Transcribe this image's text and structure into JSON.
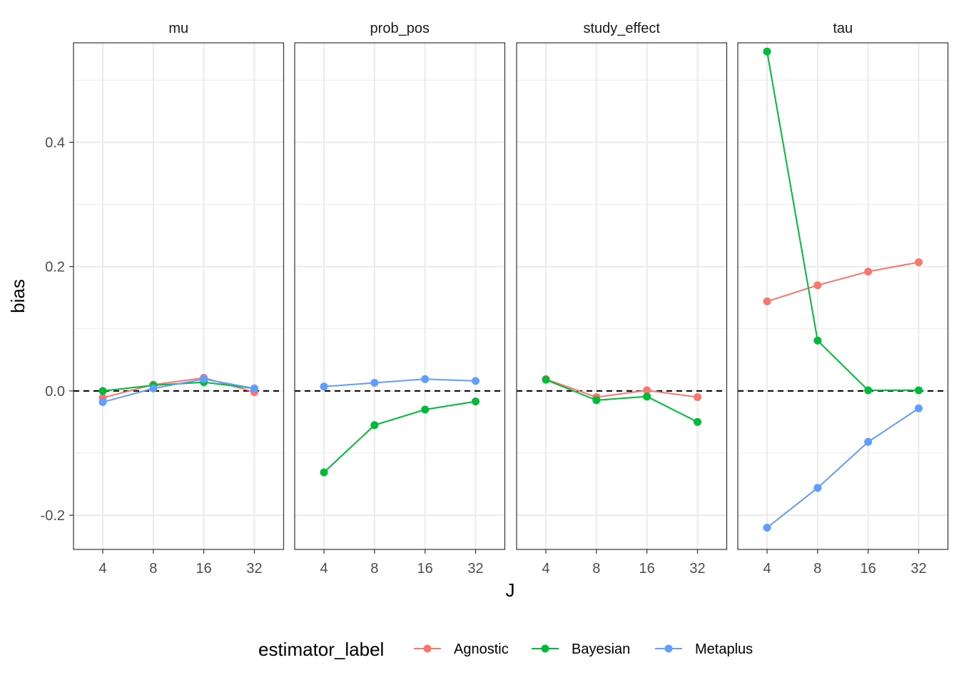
{
  "chart_data": {
    "type": "line",
    "facet_var": "quantity",
    "facets": [
      "mu",
      "prob_pos",
      "study_effect",
      "tau"
    ],
    "x": [
      4,
      8,
      16,
      32
    ],
    "x_scale": "log2",
    "xlabel": "J",
    "ylabel": "bias",
    "ylim": [
      -0.255,
      0.56
    ],
    "yticks": [
      -0.2,
      0.0,
      0.2,
      0.4
    ],
    "ytick_labels": [
      "-0.2",
      "0.0",
      "0.2",
      "0.4"
    ],
    "xtick_labels": [
      "4",
      "8",
      "16",
      "32"
    ],
    "reference_line": {
      "y": 0,
      "style": "dashed"
    },
    "grid": true,
    "legend": {
      "title": "estimator_label",
      "position": "bottom",
      "entries": [
        {
          "name": "Agnostic",
          "color": "#F8766D"
        },
        {
          "name": "Bayesian",
          "color": "#00BA38"
        },
        {
          "name": "Metaplus",
          "color": "#619CFF"
        }
      ]
    },
    "panels": [
      {
        "facet": "mu",
        "series": [
          {
            "name": "Agnostic",
            "values": [
              -0.011,
              0.01,
              0.021,
              -0.002
            ]
          },
          {
            "name": "Bayesian",
            "values": [
              0.0,
              0.009,
              0.014,
              0.004
            ]
          },
          {
            "name": "Metaplus",
            "values": [
              -0.018,
              0.004,
              0.019,
              0.004
            ]
          }
        ]
      },
      {
        "facet": "prob_pos",
        "series": [
          {
            "name": "Bayesian",
            "values": [
              -0.131,
              -0.055,
              -0.03,
              -0.017
            ]
          },
          {
            "name": "Metaplus",
            "values": [
              0.007,
              0.013,
              0.019,
              0.016
            ]
          }
        ]
      },
      {
        "facet": "study_effect",
        "series": [
          {
            "name": "Agnostic",
            "values": [
              0.019,
              -0.01,
              0.001,
              -0.01
            ]
          },
          {
            "name": "Bayesian",
            "values": [
              0.018,
              -0.015,
              -0.009,
              -0.05
            ]
          }
        ]
      },
      {
        "facet": "tau",
        "series": [
          {
            "name": "Agnostic",
            "values": [
              0.144,
              0.17,
              0.192,
              0.207
            ]
          },
          {
            "name": "Bayesian",
            "values": [
              0.546,
              0.081,
              0.001,
              0.001
            ]
          },
          {
            "name": "Metaplus",
            "values": [
              -0.22,
              -0.156,
              -0.082,
              -0.028
            ]
          }
        ]
      }
    ]
  }
}
